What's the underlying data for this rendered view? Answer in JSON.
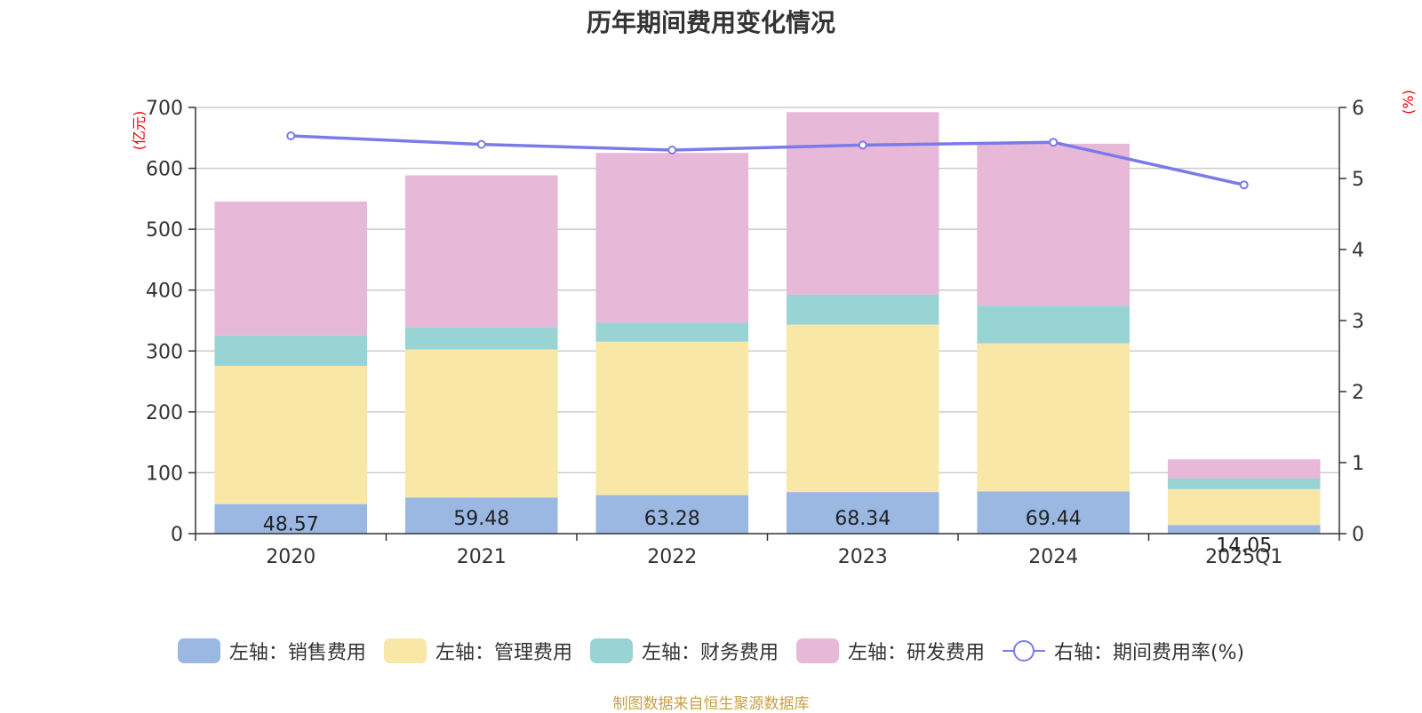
{
  "chart_data": {
    "type": "bar",
    "stacked": true,
    "title": "历年期间费用变化情况",
    "categories": [
      "2020",
      "2021",
      "2022",
      "2023",
      "2024",
      "2025Q1"
    ],
    "left_axis": {
      "unit_label": "(亿元)",
      "range": [
        0,
        700
      ],
      "ticks": [
        "0",
        "100",
        "200",
        "300",
        "400",
        "500",
        "600",
        "700"
      ]
    },
    "right_axis": {
      "unit_label": "(%)",
      "range": [
        0,
        6
      ],
      "ticks": [
        "0",
        "1",
        "2",
        "3",
        "4",
        "5",
        "6"
      ]
    },
    "series": [
      {
        "name": "左轴：销售费用",
        "kind": "bar",
        "axis": "left",
        "color": "#9bb8e3",
        "values": [
          48.57,
          59.48,
          63.28,
          68.34,
          69.44,
          14.05
        ],
        "labels": [
          "48.57",
          "59.48",
          "63.28",
          "68.34",
          "69.44",
          "14.05"
        ]
      },
      {
        "name": "左轴：管理费用",
        "kind": "bar",
        "axis": "left",
        "color": "#f9e7a8",
        "values": [
          227,
          243,
          252,
          275,
          243,
          59
        ]
      },
      {
        "name": "左轴：财务费用",
        "kind": "bar",
        "axis": "left",
        "color": "#99d4d5",
        "values": [
          50,
          37,
          31,
          49,
          62,
          18
        ]
      },
      {
        "name": "左轴：研发费用",
        "kind": "bar",
        "axis": "left",
        "color": "#e8b8d9",
        "values": [
          220,
          249,
          279,
          300,
          266,
          31
        ]
      },
      {
        "name": "右轴：期间费用率(%)",
        "kind": "line",
        "axis": "right",
        "color": "#7b7be8",
        "values": [
          5.6,
          5.48,
          5.4,
          5.47,
          5.51,
          4.91
        ]
      }
    ],
    "grid": true,
    "legend_position": "bottom"
  },
  "source_note": "制图数据来自恒生聚源数据库"
}
